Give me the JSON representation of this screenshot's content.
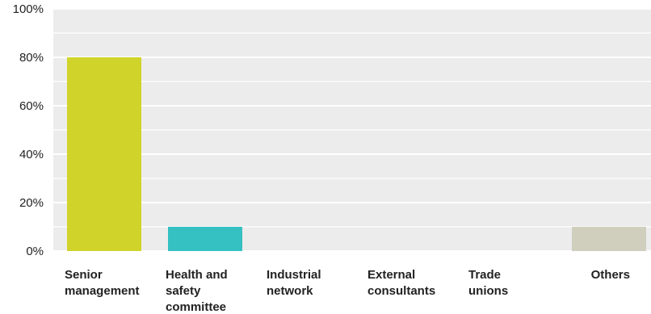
{
  "chart_data": {
    "type": "bar",
    "title": "",
    "xlabel": "",
    "ylabel": "",
    "ylim": [
      0,
      100
    ],
    "yticks": [
      0,
      20,
      40,
      60,
      80,
      100
    ],
    "ytick_labels": [
      "0%",
      "20%",
      "40%",
      "60%",
      "80%",
      "100%"
    ],
    "grid": true,
    "legend": "none",
    "categories": [
      "Senior management",
      "Health and safety committee",
      "Industrial network",
      "External consultants",
      "Trade unions",
      "Others"
    ],
    "category_label_lines": [
      [
        "Senior",
        "management"
      ],
      [
        "Health and",
        "safety",
        "committee"
      ],
      [
        "Industrial",
        "network"
      ],
      [
        "External",
        "consultants"
      ],
      [
        "Trade",
        "unions"
      ],
      [
        "Others"
      ]
    ],
    "values": [
      80,
      10,
      0,
      0,
      0,
      10
    ],
    "colors": [
      "#d0d42a",
      "#35c0c2",
      "#888888",
      "#888888",
      "#888888",
      "#d0cfbd"
    ],
    "plot_background": "#ececec",
    "gridline_color": "#ffffff"
  }
}
